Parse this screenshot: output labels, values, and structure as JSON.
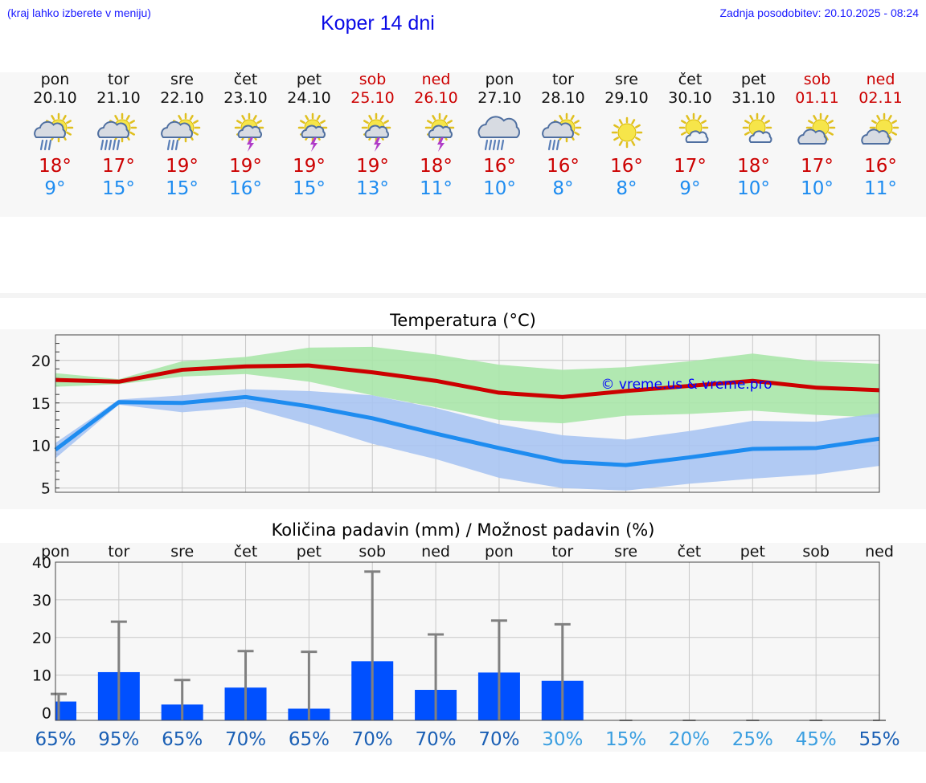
{
  "header": {
    "hint": "(kraj lahko izberete v meniju)",
    "title": "Koper 14 dni",
    "updated": "Zadnja posodobitev: 20.10.2025 - 08:24"
  },
  "days": [
    {
      "name": "pon",
      "date": "20.10",
      "max": "18°",
      "min": "9°",
      "icon": "sun-cloud-rain-icon",
      "weekend": false
    },
    {
      "name": "tor",
      "date": "21.10",
      "max": "17°",
      "min": "15°",
      "icon": "sun-cloud-heavy-rain-icon",
      "weekend": false
    },
    {
      "name": "sre",
      "date": "22.10",
      "max": "19°",
      "min": "15°",
      "icon": "sun-cloud-rain-icon",
      "weekend": false
    },
    {
      "name": "čet",
      "date": "23.10",
      "max": "19°",
      "min": "16°",
      "icon": "sun-cloud-thunder-icon",
      "weekend": false
    },
    {
      "name": "pet",
      "date": "24.10",
      "max": "19°",
      "min": "15°",
      "icon": "sun-cloud-thunder-icon",
      "weekend": false
    },
    {
      "name": "sob",
      "date": "25.10",
      "max": "19°",
      "min": "13°",
      "icon": "sun-cloud-thunder-icon",
      "weekend": true
    },
    {
      "name": "ned",
      "date": "26.10",
      "max": "18°",
      "min": "11°",
      "icon": "sun-cloud-thunder-icon",
      "weekend": true
    },
    {
      "name": "pon",
      "date": "27.10",
      "max": "16°",
      "min": "10°",
      "icon": "cloud-heavy-rain-icon",
      "weekend": false
    },
    {
      "name": "tor",
      "date": "28.10",
      "max": "16°",
      "min": "8°",
      "icon": "sun-cloud-rain-icon",
      "weekend": false
    },
    {
      "name": "sre",
      "date": "29.10",
      "max": "16°",
      "min": "8°",
      "icon": "sun-icon",
      "weekend": false
    },
    {
      "name": "čet",
      "date": "30.10",
      "max": "17°",
      "min": "9°",
      "icon": "sun-small-cloud-icon",
      "weekend": false
    },
    {
      "name": "pet",
      "date": "31.10",
      "max": "18°",
      "min": "10°",
      "icon": "sun-small-cloud-icon",
      "weekend": false
    },
    {
      "name": "sob",
      "date": "01.11",
      "max": "17°",
      "min": "10°",
      "icon": "sun-cloud-icon",
      "weekend": true
    },
    {
      "name": "ned",
      "date": "02.11",
      "max": "16°",
      "min": "11°",
      "icon": "sun-cloud-icon",
      "weekend": true
    }
  ],
  "colors": {
    "max": "#cc0000",
    "min": "#1e8cf0",
    "max_band": "#a8e6a8",
    "min_band": "#a8c4f2",
    "bar": "#0050ff",
    "whisker": "#808080"
  },
  "chart_data": [
    {
      "type": "line",
      "title": "Temperatura (°C)",
      "watermark": "© vreme.us & vreme.pro",
      "x": [
        0,
        1,
        2,
        3,
        4,
        5,
        6,
        7,
        8,
        9,
        10,
        11,
        12,
        13
      ],
      "ylim": [
        4.5,
        23
      ],
      "yticks": [
        5,
        10,
        15,
        20
      ],
      "grid": true,
      "series": [
        {
          "name": "max",
          "values": [
            17.7,
            17.5,
            18.9,
            19.3,
            19.4,
            18.6,
            17.6,
            16.2,
            15.7,
            16.4,
            17.0,
            17.6,
            16.8,
            16.5
          ],
          "band_low": [
            16.9,
            17.2,
            18.1,
            18.4,
            17.5,
            15.9,
            14.5,
            13.0,
            12.6,
            13.5,
            13.7,
            14.1,
            13.6,
            13.3
          ],
          "band_high": [
            18.5,
            17.8,
            19.9,
            20.4,
            21.5,
            21.6,
            20.7,
            19.5,
            18.9,
            19.2,
            19.9,
            20.8,
            19.9,
            19.6
          ]
        },
        {
          "name": "min",
          "values": [
            9.5,
            15.1,
            15.0,
            15.7,
            14.6,
            13.2,
            11.4,
            9.7,
            8.1,
            7.7,
            8.6,
            9.6,
            9.7,
            10.8
          ],
          "band_low": [
            8.5,
            14.8,
            13.9,
            14.5,
            12.5,
            10.2,
            8.4,
            6.2,
            5.0,
            4.7,
            5.5,
            6.1,
            6.6,
            7.6
          ],
          "band_high": [
            10.3,
            15.4,
            15.9,
            16.6,
            16.4,
            15.9,
            14.4,
            12.5,
            11.2,
            10.7,
            11.7,
            12.9,
            12.8,
            13.8
          ]
        }
      ]
    },
    {
      "type": "bar",
      "title": "Količina padavin (mm) / Možnost padavin (%)",
      "categories": [
        "pon",
        "tor",
        "sre",
        "čet",
        "pet",
        "sob",
        "ned",
        "pon",
        "tor",
        "sre",
        "čet",
        "pet",
        "sob",
        "ned"
      ],
      "values": [
        3,
        10.8,
        2.2,
        6.7,
        1.1,
        13.7,
        6.1,
        10.7,
        8.5,
        0,
        0,
        0,
        0,
        0
      ],
      "whisker_high": [
        5,
        24.2,
        8.7,
        16.4,
        16.2,
        37.5,
        20.8,
        24.5,
        23.5,
        0,
        0,
        0,
        0,
        0
      ],
      "probability": [
        "65%",
        "95%",
        "65%",
        "70%",
        "65%",
        "70%",
        "70%",
        "70%",
        "30%",
        "15%",
        "20%",
        "25%",
        "45%",
        "55%"
      ],
      "ylim": [
        -2,
        40
      ],
      "yticks": [
        0,
        10,
        20,
        30,
        40
      ],
      "grid": true
    }
  ]
}
